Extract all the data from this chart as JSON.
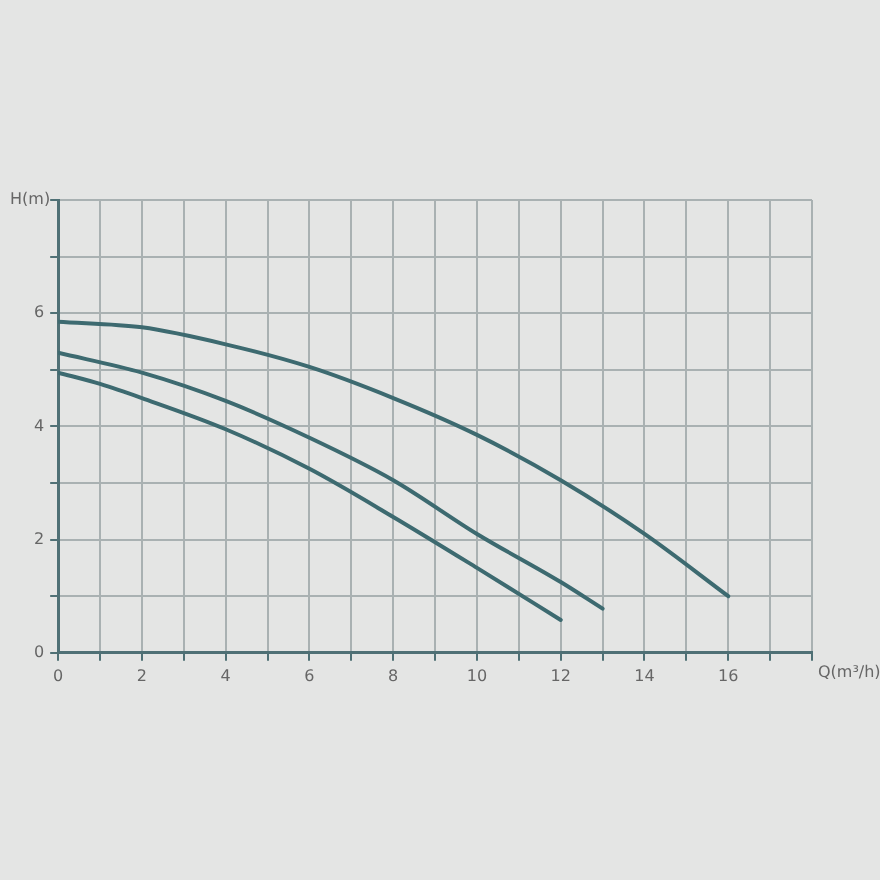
{
  "chart_data": {
    "type": "line",
    "xlabel": "Q(m³/h)",
    "ylabel": "H(m)",
    "xlim": [
      0,
      18
    ],
    "ylim": [
      0,
      8
    ],
    "xticks": [
      0,
      {
        "value": 1,
        "label": null
      },
      2,
      {
        "value": 3,
        "label": null
      },
      4,
      {
        "value": 5,
        "label": null
      },
      6,
      {
        "value": 7,
        "label": null
      },
      8,
      {
        "value": 9,
        "label": null
      },
      10,
      {
        "value": 11,
        "label": null
      },
      12,
      {
        "value": 13,
        "label": null
      },
      14,
      {
        "value": 15,
        "label": null
      },
      16,
      {
        "value": 17,
        "label": null
      },
      {
        "value": 18,
        "label": null
      }
    ],
    "yticks": [
      0,
      {
        "value": 1,
        "label": null
      },
      2,
      {
        "value": 3,
        "label": null
      },
      4,
      {
        "value": 5,
        "label": null
      },
      6,
      {
        "value": 7,
        "label": null
      },
      {
        "value": 8,
        "label": null
      }
    ],
    "grid": true,
    "legend": false,
    "marker": "none",
    "line_style": "solid",
    "series": [
      {
        "color": "#3d6a70",
        "x": [
          0,
          2,
          4,
          6,
          8,
          10,
          12,
          14,
          16
        ],
        "values": [
          5.85,
          5.75,
          5.45,
          5.05,
          4.5,
          3.85,
          3.05,
          2.1,
          1.0
        ]
      },
      {
        "color": "#3d6a70",
        "x": [
          0,
          2,
          4,
          6,
          8,
          10,
          12,
          13
        ],
        "values": [
          5.3,
          4.95,
          4.45,
          3.8,
          3.05,
          2.1,
          1.25,
          0.78
        ]
      },
      {
        "color": "#3d6a70",
        "x": [
          0,
          1,
          2,
          4,
          6,
          8,
          10,
          12
        ],
        "values": [
          4.95,
          4.75,
          4.5,
          3.95,
          3.25,
          2.4,
          1.5,
          0.58
        ]
      }
    ]
  }
}
